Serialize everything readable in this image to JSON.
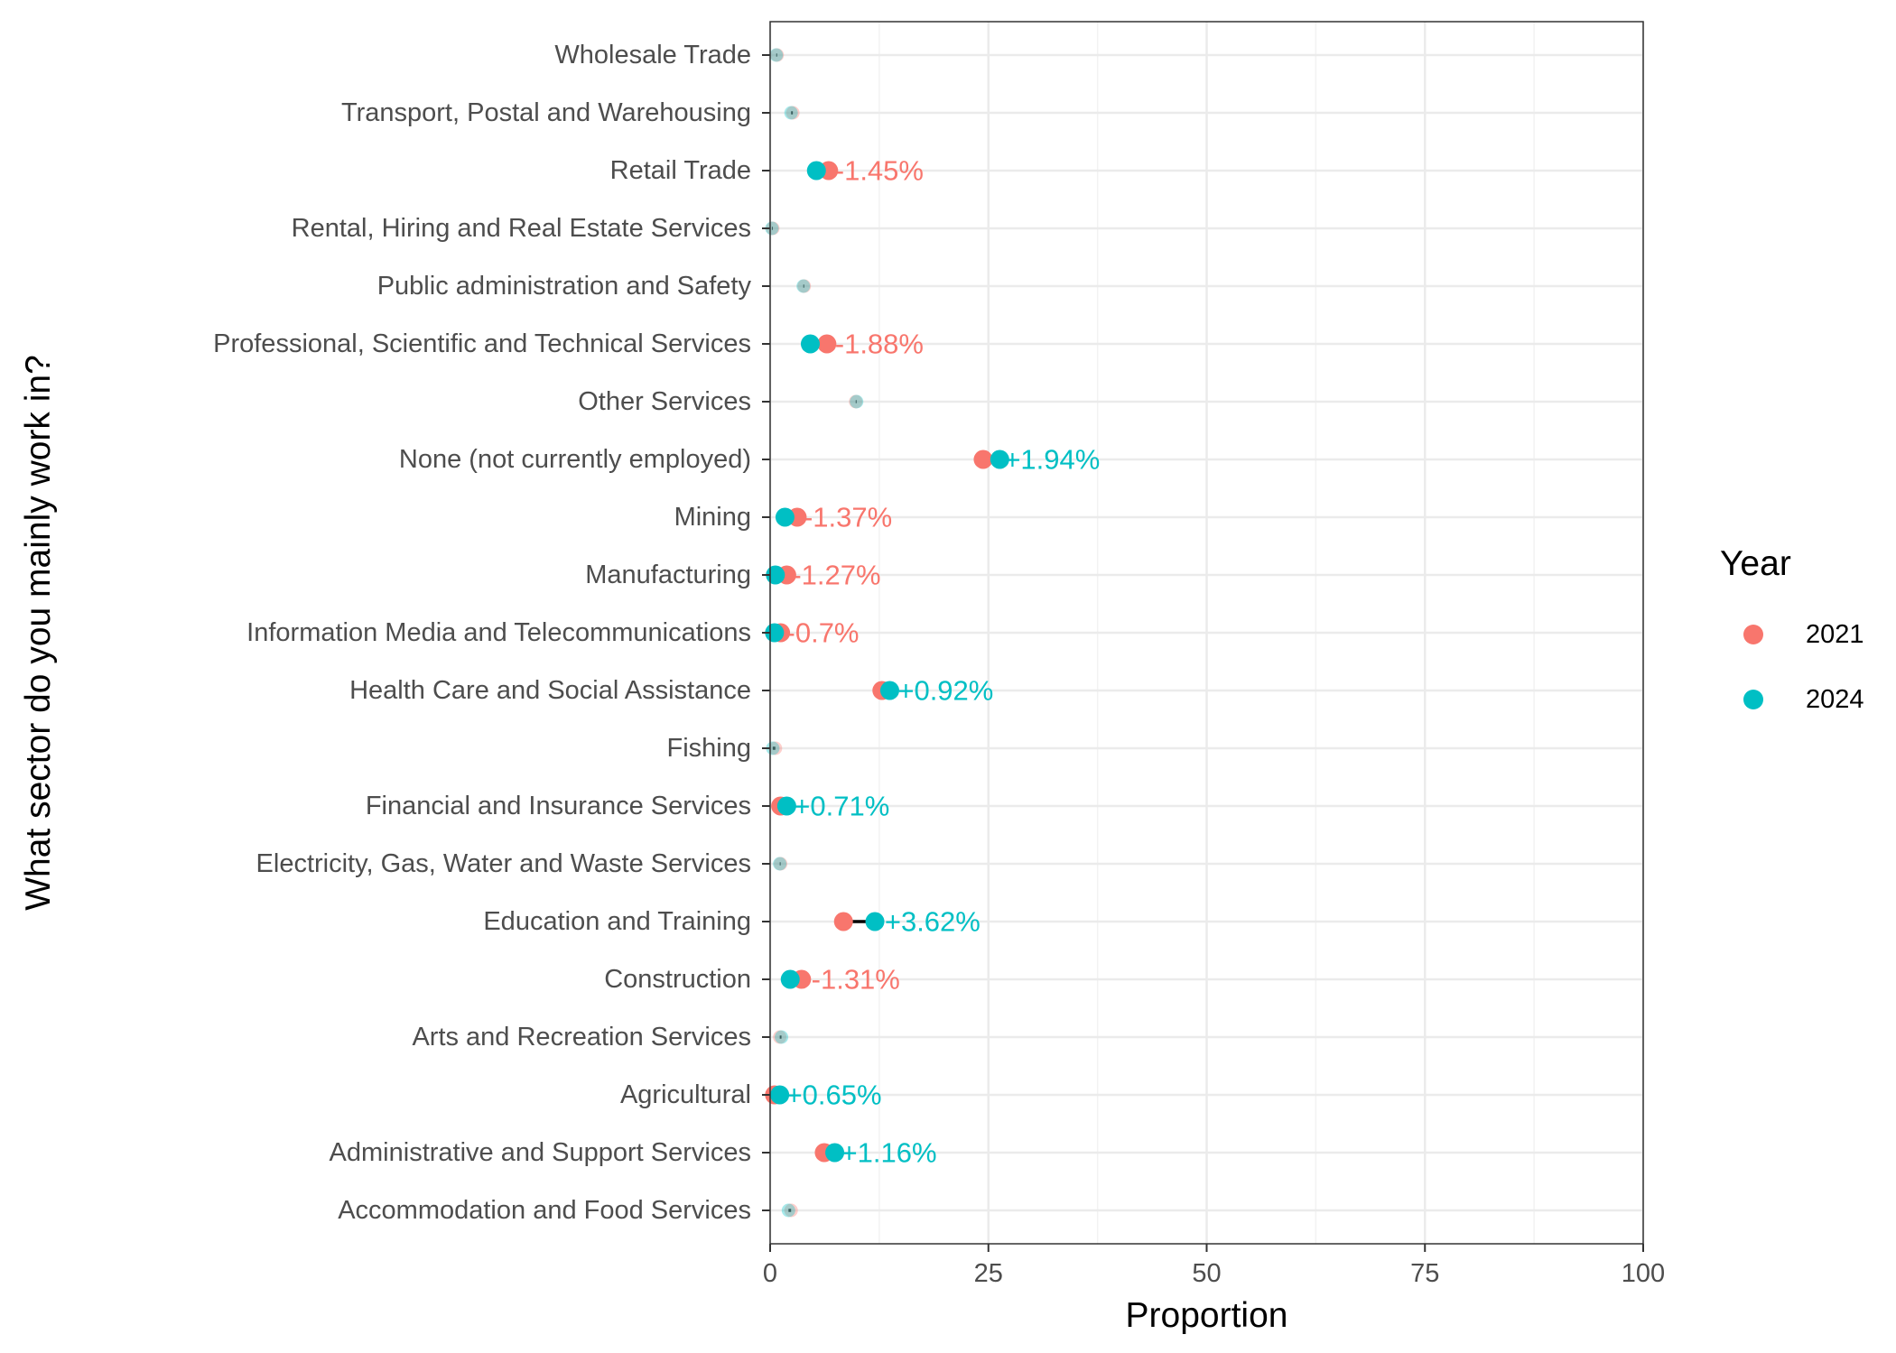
{
  "chart_data": {
    "type": "scatter",
    "subtype": "dumbbell",
    "xlabel": "Proportion",
    "ylabel": "What sector do you mainly work in?",
    "xlim": [
      0,
      100
    ],
    "xticks": [
      0,
      25,
      50,
      75,
      100
    ],
    "grid": true,
    "legend": {
      "title": "Year",
      "placement": "right",
      "entries": [
        {
          "label": "2021",
          "color": "#F8766D"
        },
        {
          "label": "2024",
          "color": "#00BFC4"
        }
      ]
    },
    "categories": [
      "Wholesale Trade",
      "Transport, Postal and Warehousing",
      "Retail Trade",
      "Rental, Hiring and Real Estate Services",
      "Public administration and Safety",
      "Professional, Scientific and Technical Services",
      "Other Services",
      "None (not currently employed)",
      "Mining",
      "Manufacturing",
      "Information Media and Telecommunications",
      "Health Care and Social Assistance",
      "Fishing",
      "Financial and Insurance Services",
      "Electricity, Gas, Water and Waste Services",
      "Education and Training",
      "Construction",
      "Arts and Recreation Services",
      "Agricultural",
      "Administrative and Support Services",
      "Accommodation and Food Services"
    ],
    "series": [
      {
        "name": "2021",
        "color": "#F8766D",
        "values": [
          0.8,
          2.6,
          6.7,
          0.3,
          3.9,
          6.5,
          9.8,
          24.4,
          3.1,
          1.9,
          1.2,
          12.8,
          0.6,
          1.2,
          1.2,
          8.4,
          3.6,
          1.1,
          0.5,
          6.2,
          2.4
        ]
      },
      {
        "name": "2024",
        "color": "#00BFC4",
        "values": [
          0.7,
          2.4,
          5.3,
          0.2,
          3.8,
          4.6,
          9.9,
          26.3,
          1.7,
          0.6,
          0.5,
          13.7,
          0.3,
          1.9,
          1.1,
          12.0,
          2.3,
          1.3,
          1.1,
          7.4,
          2.1
        ]
      }
    ],
    "annotations": [
      {
        "category": "Retail Trade",
        "text": "-1.45%",
        "x": 12.5,
        "series": "2021"
      },
      {
        "category": "Professional, Scientific and Technical Services",
        "text": "-1.88%",
        "x": 12.5,
        "series": "2021"
      },
      {
        "category": "None (not currently employed)",
        "text": "+1.94%",
        "x": 32.3,
        "series": "2024"
      },
      {
        "category": "Mining",
        "text": "-1.37%",
        "x": 8.9,
        "series": "2021"
      },
      {
        "category": "Manufacturing",
        "text": "-1.27%",
        "x": 7.6,
        "series": "2021"
      },
      {
        "category": "Information Media and Telecommunications",
        "text": "-0.7%",
        "x": 6.0,
        "series": "2021"
      },
      {
        "category": "Health Care and Social Assistance",
        "text": "+0.92%",
        "x": 20.1,
        "series": "2024"
      },
      {
        "category": "Financial and Insurance Services",
        "text": "+0.71%",
        "x": 8.2,
        "series": "2024"
      },
      {
        "category": "Education and Training",
        "text": "+3.62%",
        "x": 18.6,
        "series": "2024"
      },
      {
        "category": "Construction",
        "text": "-1.31%",
        "x": 9.8,
        "series": "2021"
      },
      {
        "category": "Agricultural",
        "text": "+0.65%",
        "x": 7.3,
        "series": "2024"
      },
      {
        "category": "Administrative and Support Services",
        "text": "+1.16%",
        "x": 13.6,
        "series": "2024"
      }
    ]
  }
}
